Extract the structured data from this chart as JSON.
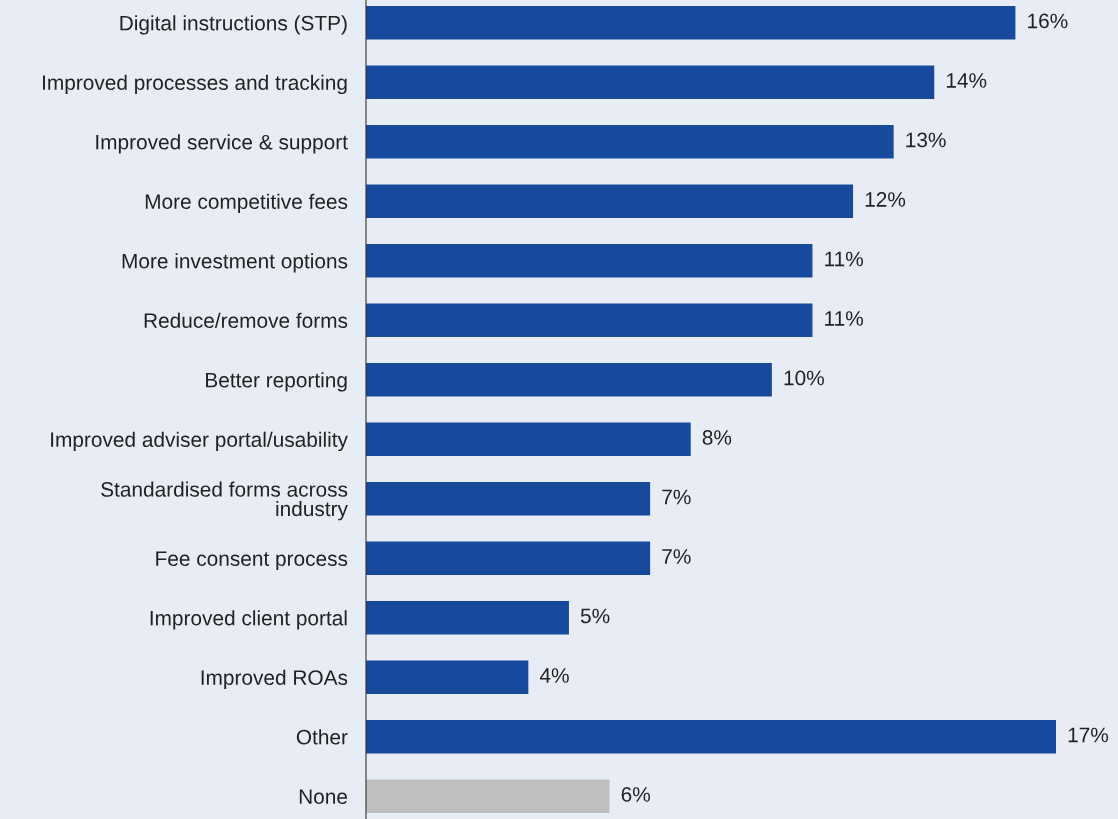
{
  "chart_data": {
    "type": "bar",
    "orientation": "horizontal",
    "categories": [
      "Digital instructions (STP)",
      "Improved processes and tracking",
      "Improved service & support",
      "More competitive fees",
      "More investment options",
      "Reduce/remove forms",
      "Better reporting",
      "Improved adviser portal/usability",
      "Standardised forms across\nindustry",
      "Fee consent process",
      "Improved client portal",
      "Improved ROAs",
      "Other",
      "None"
    ],
    "values": [
      16,
      14,
      13,
      12,
      11,
      11,
      10,
      8,
      7,
      7,
      5,
      4,
      17,
      6
    ],
    "colors": [
      "#174a9c",
      "#174a9c",
      "#174a9c",
      "#174a9c",
      "#174a9c",
      "#174a9c",
      "#174a9c",
      "#174a9c",
      "#174a9c",
      "#174a9c",
      "#174a9c",
      "#174a9c",
      "#174a9c",
      "#bfbfbf"
    ],
    "value_labels": [
      "16%",
      "14%",
      "13%",
      "12%",
      "11%",
      "11%",
      "10%",
      "8%",
      "7%",
      "7%",
      "5%",
      "4%",
      "17%",
      "6%"
    ],
    "grid": false,
    "legend": false
  }
}
